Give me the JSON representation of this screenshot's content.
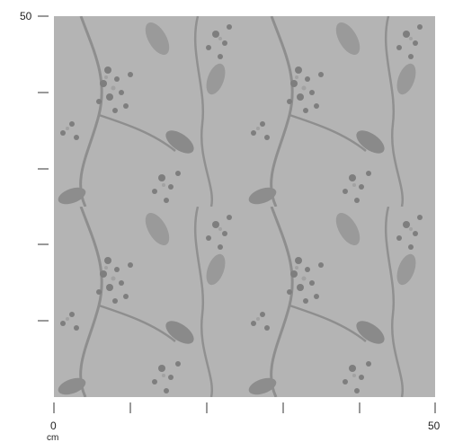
{
  "ruler": {
    "y_top_label": "50",
    "x_start_label": "0",
    "x_end_label": "50",
    "unit": "cm"
  }
}
